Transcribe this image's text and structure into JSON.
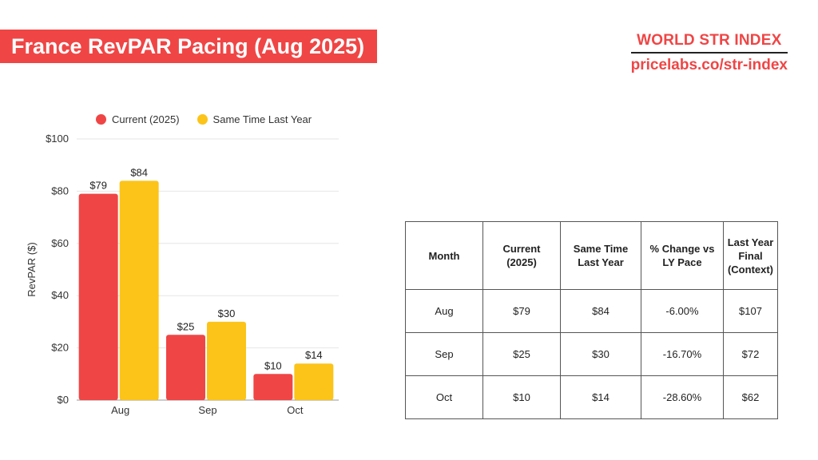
{
  "header": {
    "title": "France RevPAR Pacing (Aug 2025)",
    "brand_name": "WORLD STR INDEX",
    "brand_url": "pricelabs.co/str-index"
  },
  "colors": {
    "current": "#f04545",
    "last_year": "#fcc419",
    "brand": "#f04545"
  },
  "chart_data": {
    "type": "bar",
    "title": "",
    "xlabel": "",
    "ylabel": "RevPAR ($)",
    "categories": [
      "Aug",
      "Sep",
      "Oct"
    ],
    "series": [
      {
        "name": "Current (2025)",
        "values": [
          79,
          25,
          10
        ],
        "labels": [
          "$79",
          "$25",
          "$10"
        ]
      },
      {
        "name": "Same Time Last Year",
        "values": [
          84,
          30,
          14
        ],
        "labels": [
          "$84",
          "$30",
          "$14"
        ]
      }
    ],
    "ylim": [
      0,
      100
    ],
    "yticks": [
      0,
      20,
      40,
      60,
      80,
      100
    ],
    "ytick_labels": [
      "$0",
      "$20",
      "$40",
      "$60",
      "$80",
      "$100"
    ],
    "grid": true,
    "legend_position": "top"
  },
  "table": {
    "headers": [
      [
        "Month"
      ],
      [
        "Current",
        "(2025)"
      ],
      [
        "Same Time",
        "Last Year"
      ],
      [
        "% Change vs",
        "LY Pace"
      ],
      [
        "Last Year Final",
        "(Context)"
      ]
    ],
    "rows": [
      [
        "Aug",
        "$79",
        "$84",
        "-6.00%",
        "$107"
      ],
      [
        "Sep",
        "$25",
        "$30",
        "-16.70%",
        "$72"
      ],
      [
        "Oct",
        "$10",
        "$14",
        "-28.60%",
        "$62"
      ]
    ]
  }
}
